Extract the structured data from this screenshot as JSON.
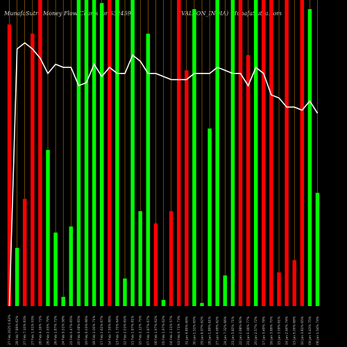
{
  "header": {
    "left": "MunafaSutra  Money Flow  Charts for 532459",
    "mid": "(VALSON_INDIA)",
    "right": "MunafaSutra.com"
  },
  "colors": {
    "background": "#000000",
    "up": "#00ff00",
    "down": "#ff0000",
    "grid": "#c07800",
    "line": "#ffffff"
  },
  "chart_data": {
    "type": "bar",
    "y_range": [
      0,
      100
    ],
    "bars": [
      {
        "label": "27 Feb 2025 0.62%",
        "value": 92,
        "color": "red"
      },
      {
        "label": "28 Feb 7.89% 62%",
        "value": 19,
        "color": "green"
      },
      {
        "label": "27 Feb 7.10% 83%",
        "value": 35,
        "color": "red"
      },
      {
        "label": "27 Feb 1.91% 93%",
        "value": 89,
        "color": "red"
      },
      {
        "label": "28 Feb 4.16% 72%",
        "value": 100,
        "color": "red"
      },
      {
        "label": "26 Feb 2.93% 79%",
        "value": 51,
        "color": "green"
      },
      {
        "label": "26 Feb 1.87% 72%",
        "value": 24,
        "color": "green"
      },
      {
        "label": "24 Feb 5.51% 58%",
        "value": 3,
        "color": "green"
      },
      {
        "label": "21 Feb 0.47% 65%",
        "value": 26,
        "color": "green"
      },
      {
        "label": "20 Feb 6.08% 65%",
        "value": 100,
        "color": "green"
      },
      {
        "label": "19 Feb 5.03% 66%",
        "value": 100,
        "color": "green"
      },
      {
        "label": "18 Feb 2.00% 71%",
        "value": 100,
        "color": "green"
      },
      {
        "label": "17 Feb 2.62% 67%",
        "value": 99,
        "color": "green"
      },
      {
        "label": "14 Feb 7.59% 88%",
        "value": 100,
        "color": "red"
      },
      {
        "label": "13 Feb 1.70% 64%",
        "value": 100,
        "color": "green"
      },
      {
        "label": "12 Feb 2.01% 65%",
        "value": 9,
        "color": "green"
      },
      {
        "label": "11 Feb 1.87% 81%",
        "value": 100,
        "color": "green"
      },
      {
        "label": "10 Feb 2.12% 75%",
        "value": 31,
        "color": "green"
      },
      {
        "label": "07 Feb 2.87% 67%",
        "value": 89,
        "color": "green"
      },
      {
        "label": "06 Feb 1.97% 62%",
        "value": 27,
        "color": "red"
      },
      {
        "label": "05 Feb 1.97% 62%",
        "value": 2,
        "color": "green"
      },
      {
        "label": "04 Feb 2.11% 57%",
        "value": 31,
        "color": "red"
      },
      {
        "label": "03 Feb 0.71% 73%",
        "value": 100,
        "color": "red"
      },
      {
        "label": "31 Jan 4.80% 69%",
        "value": 77,
        "color": "red"
      },
      {
        "label": "30 Jan 1.51% 65%",
        "value": 97,
        "color": "green"
      },
      {
        "label": "29 Jan 6.97% 62%",
        "value": 1,
        "color": "green"
      },
      {
        "label": "28 Jan 1.89% 61%",
        "value": 58,
        "color": "green"
      },
      {
        "label": "27 Jan 4.99% 62%",
        "value": 100,
        "color": "green"
      },
      {
        "label": "24 Jan 7.32% 66%",
        "value": 10,
        "color": "green"
      },
      {
        "label": "23 Jan 5.82% 71%",
        "value": 100,
        "color": "green"
      },
      {
        "label": "22 Jan 2.68% 60%",
        "value": 100,
        "color": "red"
      },
      {
        "label": "21 Jan 0.16% 77%",
        "value": 82,
        "color": "red"
      },
      {
        "label": "20 Jan 2.57% 72%",
        "value": 100,
        "color": "green"
      },
      {
        "label": "17 Jan 3.49% 78%",
        "value": 100,
        "color": "red"
      },
      {
        "label": "16 Jan 3.69% 70%",
        "value": 100,
        "color": "red"
      },
      {
        "label": "15 Jan 3.09% 61%",
        "value": 11,
        "color": "red"
      },
      {
        "label": "14 Jan 2.60% 74%",
        "value": 100,
        "color": "red"
      },
      {
        "label": "13 Jan 5.00% 68%",
        "value": 15,
        "color": "red"
      },
      {
        "label": "10 Jan 3.81% 65%",
        "value": 100,
        "color": "red"
      },
      {
        "label": "09 Jan 5.43% 75%",
        "value": 97,
        "color": "green"
      },
      {
        "label": "08 Jan 1.54% 74%",
        "value": 37,
        "color": "green"
      }
    ],
    "line": [
      0,
      84,
      86,
      84,
      81,
      76,
      79,
      78,
      78,
      72,
      73,
      79,
      75,
      78,
      76,
      76,
      82,
      80,
      76,
      76,
      75,
      74,
      74,
      74,
      76,
      76,
      76,
      78,
      77,
      76,
      76,
      72,
      78,
      76,
      69,
      68,
      65,
      65,
      64,
      67,
      63
    ]
  }
}
